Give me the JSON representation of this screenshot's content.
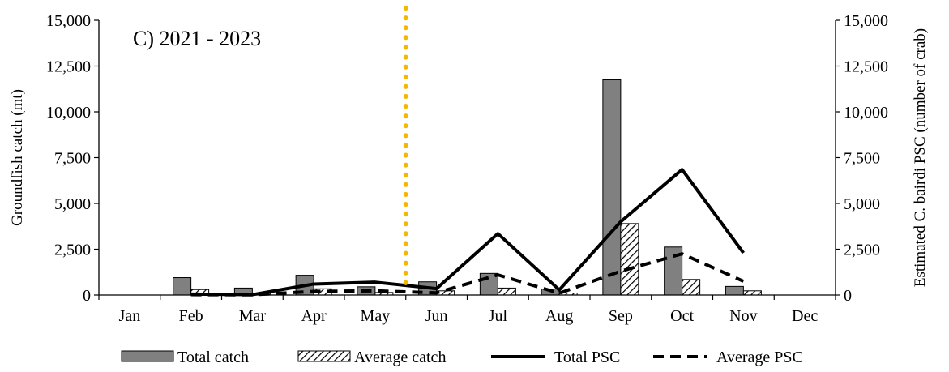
{
  "chart_data": {
    "type": "bar",
    "title": "C) 2021 - 2023",
    "categories": [
      "Jan",
      "Feb",
      "Mar",
      "Apr",
      "May",
      "Jun",
      "Jul",
      "Aug",
      "Sep",
      "Oct",
      "Nov",
      "Dec"
    ],
    "ylabel": "Groundfish catch (mt)",
    "y2label": "Estimated C. bairdi PSC (number of crab)",
    "ylim": [
      0,
      15000
    ],
    "y2lim": [
      0,
      15000
    ],
    "yticks": [
      "0",
      "2,500",
      "5,000",
      "7,500",
      "10,000",
      "12,500",
      "15,000"
    ],
    "y2ticks": [
      "0",
      "2,500",
      "5,000",
      "7,500",
      "10,000",
      "12,500",
      "15,000"
    ],
    "legend_position": "bottom",
    "series": [
      {
        "name": "Total catch",
        "kind": "bar",
        "axis": "left",
        "fill": "#808080",
        "values": [
          null,
          950,
          380,
          1080,
          450,
          720,
          1180,
          330,
          11750,
          2620,
          470,
          null
        ]
      },
      {
        "name": "Average catch",
        "kind": "bar",
        "axis": "left",
        "fill": "hatch",
        "values": [
          null,
          300,
          100,
          340,
          140,
          230,
          380,
          110,
          3900,
          850,
          230,
          null
        ]
      },
      {
        "name": "Total PSC",
        "kind": "line",
        "axis": "right",
        "color": "#000000",
        "dash": "solid",
        "values": [
          null,
          50,
          20,
          600,
          700,
          350,
          3350,
          280,
          4000,
          6850,
          2300,
          null
        ]
      },
      {
        "name": "Average PSC",
        "kind": "line",
        "axis": "right",
        "color": "#000000",
        "dash": "dashed",
        "values": [
          null,
          20,
          10,
          200,
          230,
          120,
          1100,
          100,
          1300,
          2250,
          750,
          null
        ]
      }
    ],
    "reference_line": {
      "position_between": [
        "May",
        "Jun"
      ],
      "color": "#f5b700",
      "style": "dotted"
    }
  }
}
